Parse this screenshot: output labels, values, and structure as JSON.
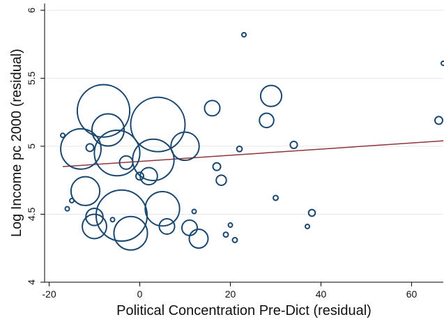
{
  "chart_data": {
    "type": "scatter",
    "title": "",
    "xlabel": "Political Concentration Pre-Dict (residual)",
    "ylabel": "Log Income pc 2000 (residual)",
    "xlim": [
      -21,
      67
    ],
    "ylim": [
      4,
      6.05
    ],
    "xticks": [
      -20,
      0,
      20,
      40,
      60
    ],
    "xtick_labels": [
      "-20",
      "0",
      "20",
      "40",
      "60"
    ],
    "yticks": [
      4,
      4.5,
      5,
      5.5,
      6
    ],
    "ytick_labels": [
      "4",
      "4.5",
      "5",
      "5.5",
      "6"
    ],
    "grid": "horizontal",
    "legend": "none",
    "colors": {
      "marker": "#1a476f",
      "fit_line": "#90353b",
      "grid": "#e6e6e6"
    },
    "points": [
      {
        "x": -8,
        "y": 5.26,
        "size": 0.93
      },
      {
        "x": 4,
        "y": 5.16,
        "size": 1.0
      },
      {
        "x": -7,
        "y": 5.12,
        "size": 0.35
      },
      {
        "x": -13,
        "y": 4.98,
        "size": 0.55
      },
      {
        "x": -5,
        "y": 4.95,
        "size": 0.7
      },
      {
        "x": 3,
        "y": 4.9,
        "size": 0.58
      },
      {
        "x": 10,
        "y": 5.0,
        "size": 0.27
      },
      {
        "x": -3,
        "y": 4.88,
        "size": 0.06
      },
      {
        "x": 2,
        "y": 4.78,
        "size": 0.1
      },
      {
        "x": 0,
        "y": 4.78,
        "size": 0.02
      },
      {
        "x": -12,
        "y": 4.67,
        "size": 0.28
      },
      {
        "x": -4,
        "y": 4.49,
        "size": 0.88
      },
      {
        "x": 5,
        "y": 4.54,
        "size": 0.4
      },
      {
        "x": -10,
        "y": 4.48,
        "size": 0.1
      },
      {
        "x": -10,
        "y": 4.41,
        "size": 0.2
      },
      {
        "x": -2,
        "y": 4.36,
        "size": 0.38
      },
      {
        "x": 6,
        "y": 4.41,
        "size": 0.08
      },
      {
        "x": 11,
        "y": 4.4,
        "size": 0.08
      },
      {
        "x": 13,
        "y": 4.32,
        "size": 0.12
      },
      {
        "x": -11,
        "y": 4.99,
        "size": 0.02
      },
      {
        "x": -17,
        "y": 5.08,
        "size": 0.005
      },
      {
        "x": -15,
        "y": 4.6,
        "size": 0.005
      },
      {
        "x": -16,
        "y": 4.54,
        "size": 0.005
      },
      {
        "x": -6,
        "y": 4.46,
        "size": 0.005
      },
      {
        "x": 12,
        "y": 4.52,
        "size": 0.005
      },
      {
        "x": 16,
        "y": 5.28,
        "size": 0.08
      },
      {
        "x": 17,
        "y": 4.85,
        "size": 0.02
      },
      {
        "x": 18,
        "y": 4.75,
        "size": 0.035
      },
      {
        "x": 22,
        "y": 4.98,
        "size": 0.01
      },
      {
        "x": 23,
        "y": 5.82,
        "size": 0.005
      },
      {
        "x": 19,
        "y": 4.35,
        "size": 0.008
      },
      {
        "x": 20,
        "y": 4.42,
        "size": 0.004
      },
      {
        "x": 21,
        "y": 4.31,
        "size": 0.008
      },
      {
        "x": 28,
        "y": 5.19,
        "size": 0.07
      },
      {
        "x": 29,
        "y": 5.37,
        "size": 0.15
      },
      {
        "x": 30,
        "y": 4.62,
        "size": 0.008
      },
      {
        "x": 34,
        "y": 5.01,
        "size": 0.017
      },
      {
        "x": 37,
        "y": 4.41,
        "size": 0.004
      },
      {
        "x": 38,
        "y": 4.51,
        "size": 0.015
      },
      {
        "x": 66,
        "y": 5.19,
        "size": 0.02
      },
      {
        "x": 67,
        "y": 5.61,
        "size": 0.004
      }
    ],
    "fit_line": {
      "x": [
        -17,
        67
      ],
      "y": [
        4.85,
        5.04
      ]
    }
  }
}
